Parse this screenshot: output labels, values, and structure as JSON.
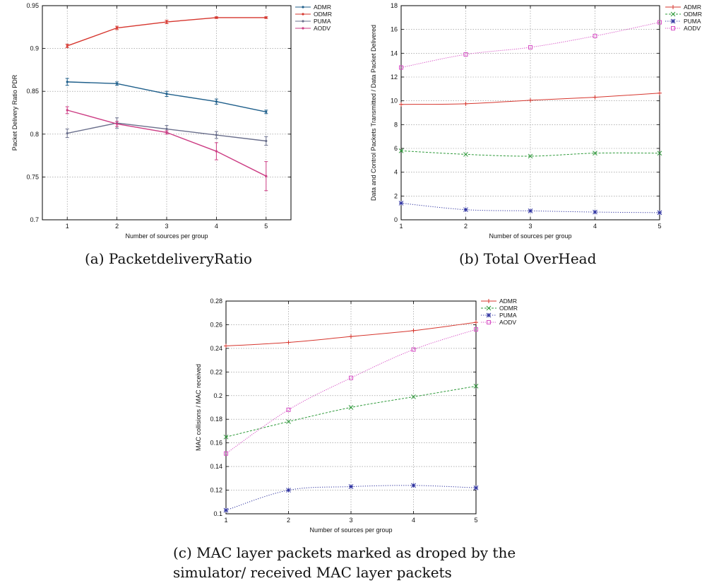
{
  "figure": {
    "captions": {
      "a": "(a)  PacketdeliveryRatio",
      "b": "(b)  Total OverHead",
      "c_line1": "(c)  MAC layer packets marked as droped by the",
      "c_line2": "simulator/ received MAC layer packets"
    }
  },
  "chart_data": [
    {
      "id": "a",
      "type": "line",
      "title": "",
      "xlabel": "Number of sources per group",
      "ylabel": "Packet Delivery Ratio PDR",
      "x": [
        1,
        2,
        3,
        4,
        5
      ],
      "xlim": [
        0.5,
        5.5
      ],
      "ylim": [
        0.7,
        0.95
      ],
      "xticks": [
        "1",
        "2",
        "3",
        "4",
        "5"
      ],
      "yticks": [
        "0.7",
        "0.75",
        "0.8",
        "0.85",
        "0.9",
        "0.95"
      ],
      "grid": true,
      "legend_position": "top-right-outside",
      "error_bars": true,
      "series": [
        {
          "name": "ADMR",
          "color": "#1f5f8b",
          "values": [
            0.861,
            0.859,
            0.847,
            0.838,
            0.826
          ],
          "err": [
            0.004,
            0.002,
            0.003,
            0.003,
            0.002
          ]
        },
        {
          "name": "ODMR",
          "color": "#d6362e",
          "values": [
            0.903,
            0.924,
            0.931,
            0.936,
            0.936
          ],
          "err": [
            0.002,
            0.002,
            0.002,
            0.001,
            0.001
          ]
        },
        {
          "name": "PUMA",
          "color": "#6a6f8c",
          "values": [
            0.801,
            0.813,
            0.806,
            0.799,
            0.792
          ],
          "err": [
            0.005,
            0.006,
            0.004,
            0.004,
            0.005
          ]
        },
        {
          "name": "AODV",
          "color": "#cc3d84",
          "values": [
            0.828,
            0.812,
            0.802,
            0.78,
            0.751
          ],
          "err": [
            0.004,
            0.003,
            0.002,
            0.01,
            0.017
          ]
        }
      ]
    },
    {
      "id": "b",
      "type": "line",
      "title": "",
      "xlabel": "Number of sources per group",
      "ylabel": "Data and Control Packets Transmitted / Data Packet Delivered",
      "x": [
        1,
        2,
        3,
        4,
        5
      ],
      "xlim": [
        1,
        5
      ],
      "ylim": [
        0,
        18
      ],
      "xticks": [
        "1",
        "2",
        "3",
        "4",
        "5"
      ],
      "yticks": [
        "0",
        "2",
        "4",
        "6",
        "8",
        "10",
        "12",
        "14",
        "16",
        "18"
      ],
      "grid": true,
      "legend_position": "top-right-outside",
      "series": [
        {
          "name": "ADMR",
          "color": "#d6362e",
          "marker": "+",
          "values": [
            9.7,
            9.75,
            10.05,
            10.3,
            10.65
          ]
        },
        {
          "name": "ODMR",
          "color": "#2e9a3a",
          "marker": "x",
          "values": [
            5.8,
            5.5,
            5.35,
            5.6,
            5.6
          ]
        },
        {
          "name": "PUMA",
          "color": "#2b2f9e",
          "marker": "*",
          "values": [
            1.4,
            0.85,
            0.75,
            0.65,
            0.6
          ]
        },
        {
          "name": "AODV",
          "color": "#d64dc4",
          "marker": "square",
          "values": [
            12.8,
            13.9,
            14.5,
            15.45,
            16.6
          ]
        }
      ]
    },
    {
      "id": "c",
      "type": "line",
      "title": "",
      "xlabel": "Number of sources per group",
      "ylabel": "MAC collisions / MAC received",
      "x": [
        1,
        2,
        3,
        4,
        5
      ],
      "xlim": [
        1,
        5
      ],
      "ylim": [
        0.1,
        0.28
      ],
      "xticks": [
        "1",
        "2",
        "3",
        "4",
        "5"
      ],
      "yticks": [
        "0.1",
        "0.12",
        "0.14",
        "0.16",
        "0.18",
        "0.2",
        "0.22",
        "0.24",
        "0.26",
        "0.28"
      ],
      "grid": true,
      "legend_position": "top-right-outside",
      "series": [
        {
          "name": "ADMR",
          "color": "#d6362e",
          "marker": "+",
          "values": [
            0.242,
            0.245,
            0.25,
            0.255,
            0.262
          ]
        },
        {
          "name": "ODMR",
          "color": "#2e9a3a",
          "marker": "x",
          "values": [
            0.165,
            0.178,
            0.19,
            0.199,
            0.208
          ]
        },
        {
          "name": "PUMA",
          "color": "#2b2f9e",
          "marker": "*",
          "values": [
            0.103,
            0.12,
            0.123,
            0.124,
            0.122
          ]
        },
        {
          "name": "AODV",
          "color": "#d64dc4",
          "marker": "square",
          "values": [
            0.151,
            0.188,
            0.215,
            0.239,
            0.256
          ]
        }
      ]
    }
  ]
}
